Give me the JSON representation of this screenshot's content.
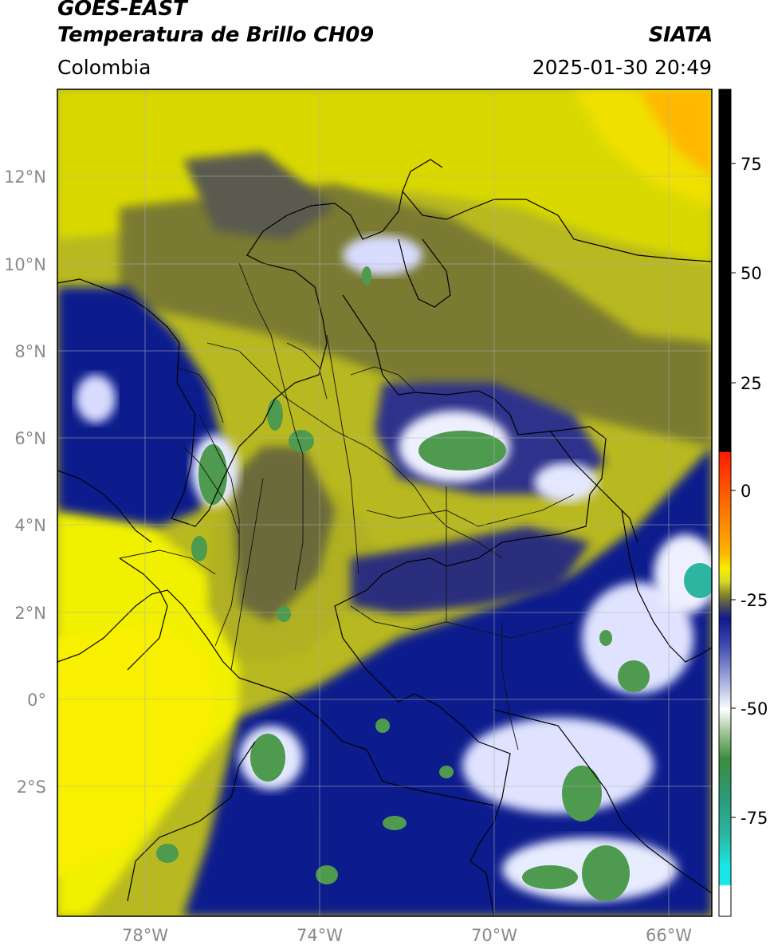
{
  "header": {
    "line1": "GOES-EAST",
    "line2": "Temperatura de Brillo CH09",
    "brand": "SIATA",
    "region": "Colombia",
    "datetime": "2025-01-30 20:49"
  },
  "axes": {
    "lat_labels": [
      "12°N",
      "10°N",
      "8°N",
      "6°N",
      "4°N",
      "2°N",
      "0°",
      "2°S"
    ],
    "lon_labels": [
      "78°W",
      "74°W",
      "70°W",
      "66°W"
    ]
  },
  "colorbar": {
    "labels": [
      "75",
      "50",
      "25",
      "0",
      "-25",
      "-50",
      "-75"
    ],
    "colors": {
      "black": "#000000",
      "red": "#e8190a",
      "orange": "#ff9900",
      "yellow": "#f5f000",
      "olive": "#8a8a2a",
      "gray": "#4a4a5a",
      "navy": "#0f1a8c",
      "white": "#ffffff",
      "green": "#3c8c3c",
      "teal": "#2cb5a0",
      "cyan": "#19e6e6"
    }
  }
}
